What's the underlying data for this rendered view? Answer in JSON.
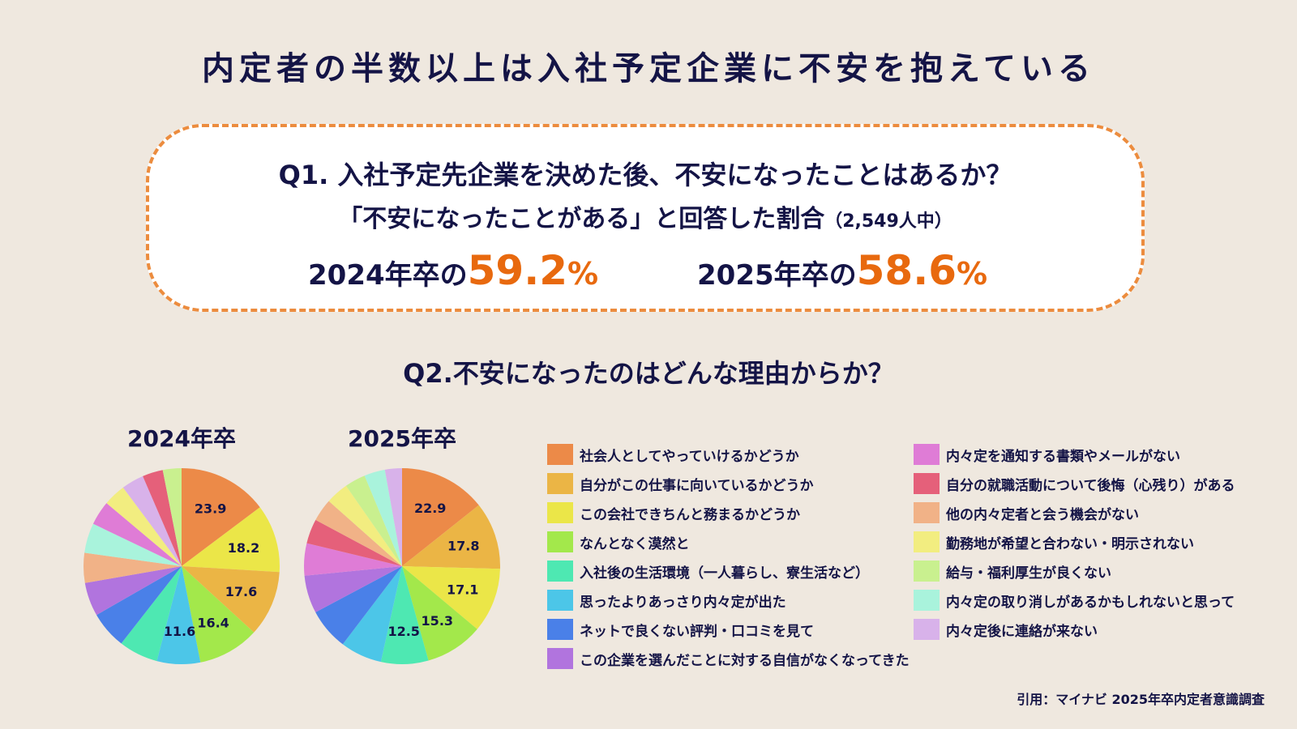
{
  "title": "内定者の半数以上は入社予定企業に不安を抱えている",
  "q1": {
    "question": "Q1. 入社予定先企業を決めた後、不安になったことはあるか？",
    "subtitle": "「不安になったことがある」と回答した割合",
    "subtitle_note": "（2,549人中）",
    "stats": [
      {
        "label": "2024年卒の",
        "value": "59.2",
        "unit": "%"
      },
      {
        "label": "2025年卒の",
        "value": "58.6",
        "unit": "%"
      }
    ]
  },
  "q2": {
    "question": "Q2.不安になったのはどんな理由からか？"
  },
  "colors": {
    "background": "#efe8df",
    "text": "#141446",
    "accent": "#e8690e",
    "border": "#ec8c3e"
  },
  "legend": {
    "left": [
      {
        "label": "社会人としてやっていけるかどうか",
        "color": "#ec8a48"
      },
      {
        "label": "自分がこの仕事に向いているかどうか",
        "color": "#ebb545"
      },
      {
        "label": "この会社できちんと務まるかどうか",
        "color": "#ebe648"
      },
      {
        "label": "なんとなく漠然と",
        "color": "#a3e84b"
      },
      {
        "label": "入社後の生活環境（一人暮らし、寮生活など）",
        "color": "#4ee8b2"
      },
      {
        "label": "思ったよりあっさり内々定が出た",
        "color": "#4cc6e8"
      },
      {
        "label": "ネットで良くない評判・口コミを見て",
        "color": "#4a80e8"
      },
      {
        "label": "この企業を選んだことに対する自信がなくなってきた",
        "color": "#b174de"
      }
    ],
    "right": [
      {
        "label": "内々定を通知する書類やメールがない",
        "color": "#df7cd6"
      },
      {
        "label": "自分の就職活動について後悔（心残り）がある",
        "color": "#e5607a"
      },
      {
        "label": "他の内々定者と会う機会がない",
        "color": "#f1b287"
      },
      {
        "label": "勤務地が希望と合わない・明示されない",
        "color": "#f2ed80"
      },
      {
        "label": "給与・福利厚生が良くない",
        "color": "#c9f08f"
      },
      {
        "label": "内々定の取り消しがあるかもしれないと思って",
        "color": "#a9f3dc"
      },
      {
        "label": "内々定後に連絡が来ない",
        "color": "#d8b2ea"
      }
    ]
  },
  "source": "引用：マイナビ 2025年卒内定者意識調査",
  "chart_data": [
    {
      "type": "pie",
      "title": "2024年卒",
      "categories": [
        "社会人としてやっていけるかどうか",
        "この会社できちんと務まるかどうか",
        "自分がこの仕事に向いているかどうか",
        "なんとなく漠然と",
        "思ったよりあっさり内々定が出た",
        "入社後の生活環境（一人暮らし、寮生活など）",
        "ネットで良くない評判・口コミを見て",
        "この企業を選んだことに対する自信がなくなってきた",
        "他の内々定者と会う機会がない",
        "内々定の取り消しがあるかもしれないと思って",
        "内々定を通知する書類やメールがない",
        "勤務地が希望と合わない・明示されない",
        "内々定後に連絡が来ない",
        "自分の就職活動について後悔（心残り）がある",
        "給与・福利厚生が良くない"
      ],
      "values": [
        23.9,
        18.2,
        17.6,
        16.4,
        11.6,
        10.5,
        10.0,
        9.0,
        8.0,
        8.0,
        6.5,
        6.0,
        6.0,
        5.5,
        5.0
      ],
      "colors": [
        "#ec8a48",
        "#ebe648",
        "#ebb545",
        "#a3e84b",
        "#4cc6e8",
        "#4ee8b2",
        "#4a80e8",
        "#b174de",
        "#f1b287",
        "#a9f3dc",
        "#df7cd6",
        "#f2ed80",
        "#d8b2ea",
        "#e5607a",
        "#c9f08f"
      ],
      "labels_shown": [
        23.9,
        18.2,
        17.6,
        16.4,
        11.6
      ]
    },
    {
      "type": "pie",
      "title": "2025年卒",
      "categories": [
        "社会人としてやっていけるかどうか",
        "自分がこの仕事に向いているかどうか",
        "この会社できちんと務まるかどうか",
        "なんとなく漠然と",
        "入社後の生活環境（一人暮らし、寮生活など）",
        "思ったよりあっさり内々定が出た",
        "ネットで良くない評判・口コミを見て",
        "この企業を選んだことに対する自信がなくなってきた",
        "内々定を通知する書類やメールがない",
        "自分の就職活動について後悔（心残り）がある",
        "他の内々定者と会う機会がない",
        "勤務地が希望と合わない・明示されない",
        "給与・福利厚生が良くない",
        "内々定の取り消しがあるかもしれないと思って",
        "内々定後に連絡が来ない"
      ],
      "values": [
        22.9,
        17.8,
        17.1,
        15.3,
        12.5,
        11.0,
        11.0,
        10.0,
        8.5,
        6.5,
        6.0,
        6.0,
        5.5,
        5.5,
        4.5
      ],
      "colors": [
        "#ec8a48",
        "#ebb545",
        "#ebe648",
        "#a3e84b",
        "#4ee8b2",
        "#4cc6e8",
        "#4a80e8",
        "#b174de",
        "#df7cd6",
        "#e5607a",
        "#f1b287",
        "#f2ed80",
        "#c9f08f",
        "#a9f3dc",
        "#d8b2ea"
      ],
      "labels_shown": [
        22.9,
        17.8,
        17.1,
        15.3,
        12.5
      ]
    }
  ]
}
